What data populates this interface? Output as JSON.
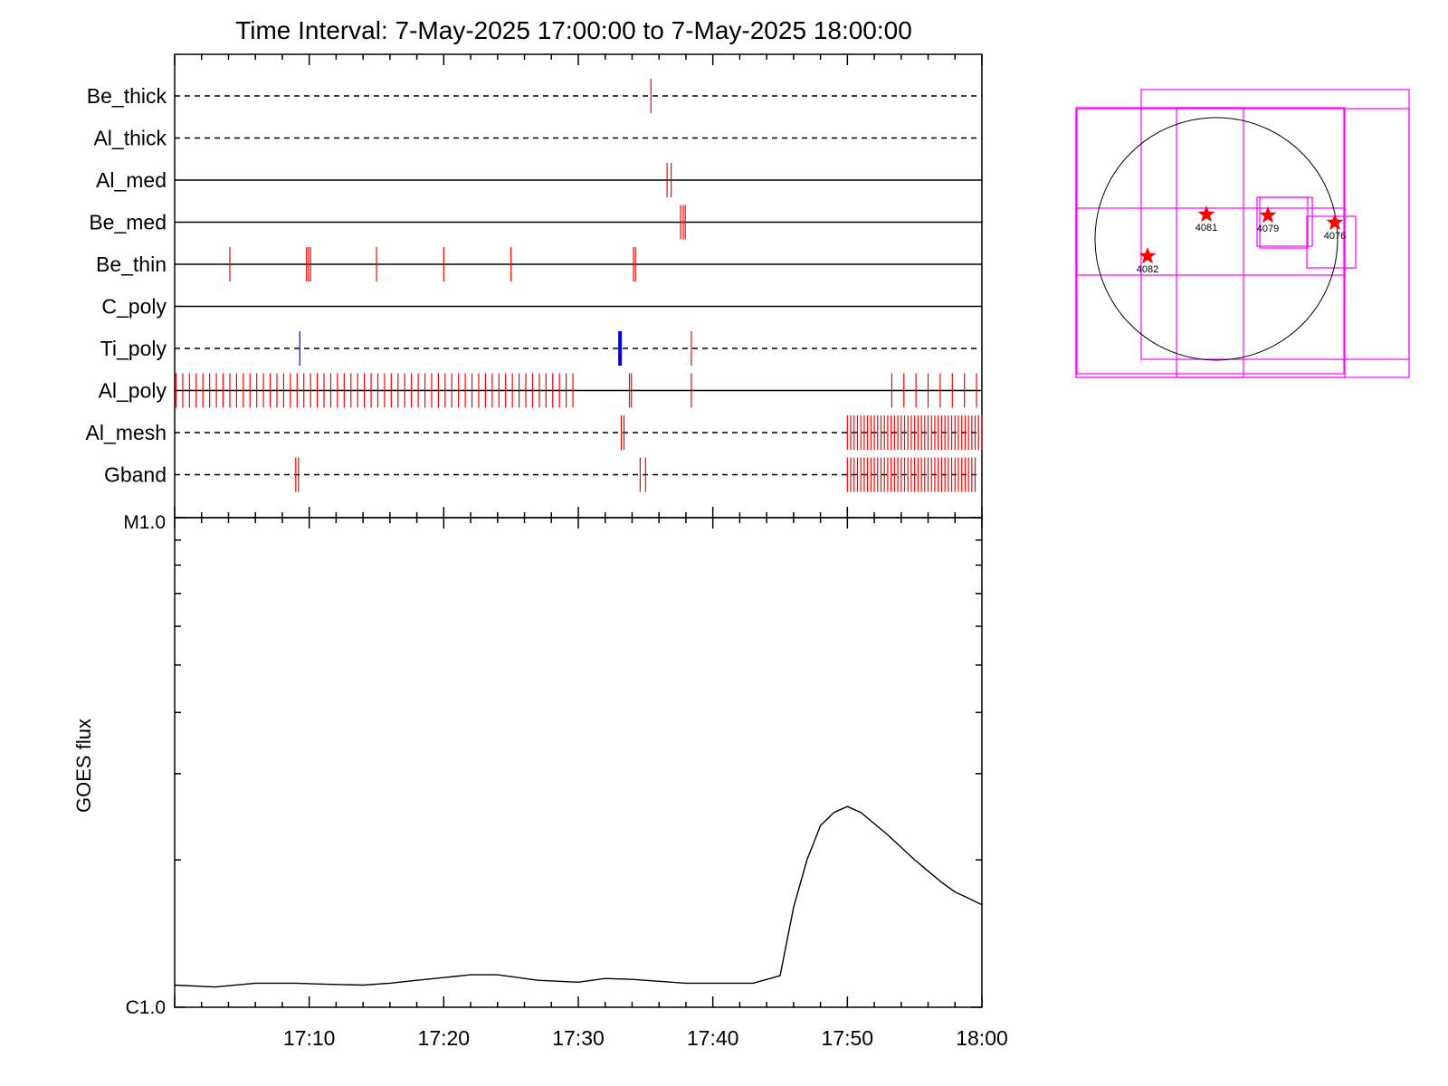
{
  "title": "Time Interval:  7-May-2025 17:00:00 to  7-May-2025 18:00:00",
  "colors": {
    "event": "#ff0000",
    "event_alt": "#0000ff",
    "frame": "#000000",
    "box": "#ff00ff",
    "star": "#ff0000"
  },
  "chart_data": [
    {
      "type": "event-timeline",
      "x_range_minutes": [
        0,
        60
      ],
      "channels": [
        {
          "name": "Be_thick",
          "line": "dashed",
          "events": [
            35.4
          ]
        },
        {
          "name": "Al_thick",
          "line": "dashed",
          "events": []
        },
        {
          "name": "Al_med",
          "line": "solid",
          "events": [
            36.6,
            36.9
          ]
        },
        {
          "name": "Be_med",
          "line": "solid",
          "events": [
            37.6,
            37.8,
            37.95
          ]
        },
        {
          "name": "Be_thin",
          "line": "solid",
          "events": [
            4.1,
            9.8,
            9.95,
            10.1,
            15.0,
            20.0,
            25.0,
            34.1,
            34.25
          ]
        },
        {
          "name": "C_poly",
          "line": "solid",
          "events": []
        },
        {
          "name": "Ti_poly",
          "line": "dashed",
          "events": [
            38.4
          ],
          "events_alt": [
            9.3
          ],
          "events_alt_bold": [
            33.1
          ]
        },
        {
          "name": "Al_poly",
          "line": "solid",
          "event_ranges": [
            {
              "start": 0.1,
              "end": 30.0,
              "step": 0.5
            },
            {
              "start": 53.3,
              "end": 59.7,
              "step": 0.9
            }
          ],
          "events": [
            33.8,
            33.95,
            38.4
          ]
        },
        {
          "name": "Al_mesh",
          "line": "dashed",
          "events": [
            33.2,
            33.4
          ],
          "event_ranges": [
            {
              "start": 50.0,
              "end": 60.0,
              "step": 0.25
            }
          ]
        },
        {
          "name": "Gband",
          "line": "dashed",
          "events": [
            9.0,
            9.2,
            34.6,
            35.0
          ],
          "event_ranges": [
            {
              "start": 50.0,
              "end": 59.6,
              "step": 0.25
            }
          ]
        }
      ]
    },
    {
      "type": "line",
      "ylabel": "GOES flux",
      "y_scale": "log",
      "y_ticks": [
        "M1.0",
        "C1.0"
      ],
      "ylim": [
        1e-06,
        1e-05
      ],
      "xlim": [
        0,
        60
      ],
      "x_ticks": [
        10,
        20,
        30,
        40,
        50,
        60
      ],
      "x_tick_labels": [
        "17:10",
        "17:20",
        "17:30",
        "17:40",
        "17:50",
        "18:00"
      ],
      "series": [
        {
          "x": [
            0,
            3,
            6,
            9,
            11,
            14,
            16,
            18,
            20,
            22,
            24,
            27,
            30,
            32,
            34,
            38,
            40,
            43,
            45,
            46,
            47,
            48,
            49,
            50,
            51,
            53,
            55,
            57,
            58,
            59,
            60
          ],
          "y": [
            1.11e-06,
            1.1e-06,
            1.12e-06,
            1.12e-06,
            1.115e-06,
            1.11e-06,
            1.12e-06,
            1.135e-06,
            1.15e-06,
            1.165e-06,
            1.165e-06,
            1.135e-06,
            1.125e-06,
            1.145e-06,
            1.14e-06,
            1.12e-06,
            1.12e-06,
            1.12e-06,
            1.16e-06,
            1.6e-06,
            2e-06,
            2.35e-06,
            2.5e-06,
            2.57e-06,
            2.5e-06,
            2.25e-06,
            2e-06,
            1.8e-06,
            1.72e-06,
            1.67e-06,
            1.62e-06
          ]
        }
      ]
    }
  ],
  "sun_map": {
    "regions": [
      {
        "label": "4081"
      },
      {
        "label": "4079"
      },
      {
        "label": "4076"
      },
      {
        "label": "4082"
      }
    ]
  }
}
